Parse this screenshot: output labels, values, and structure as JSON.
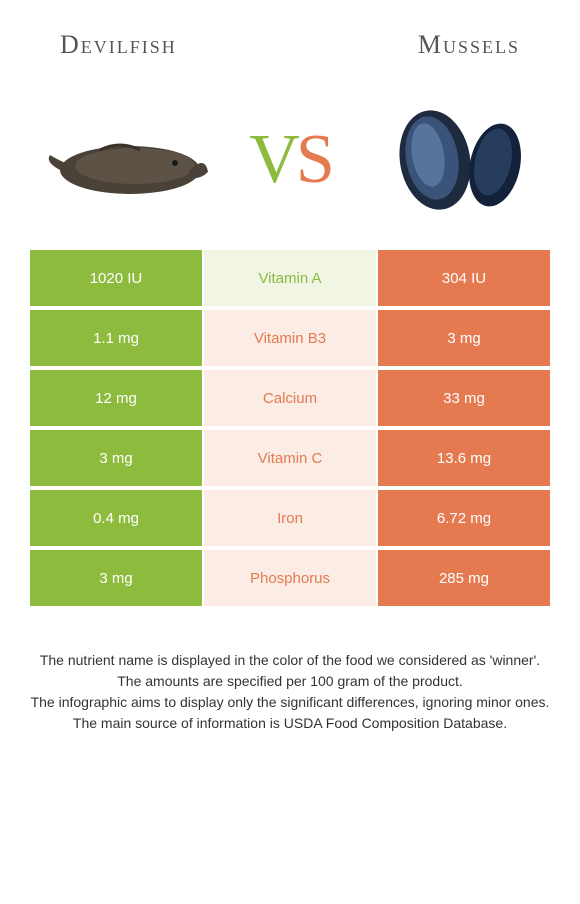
{
  "colors": {
    "green_dark": "#8cbb3e",
    "green_light": "#f0f5e4",
    "orange_dark": "#e57a51",
    "orange_light": "#fbece6",
    "text_dark": "#333333",
    "text_white": "#ffffff"
  },
  "header": {
    "left": "Devilfish",
    "right": "Mussels"
  },
  "vs": {
    "v": "V",
    "s": "S"
  },
  "rows": [
    {
      "left": {
        "value": "1020 IU",
        "bg": "#8cbb3e",
        "fg": "#ffffff"
      },
      "mid": {
        "value": "Vitamin A",
        "bg": "#f0f5e4",
        "fg": "#8cbb3e"
      },
      "right": {
        "value": "304 IU",
        "bg": "#e57a51",
        "fg": "#ffffff"
      }
    },
    {
      "left": {
        "value": "1.1 mg",
        "bg": "#8cbb3e",
        "fg": "#ffffff"
      },
      "mid": {
        "value": "Vitamin B3",
        "bg": "#fbece6",
        "fg": "#e57a51"
      },
      "right": {
        "value": "3 mg",
        "bg": "#e57a51",
        "fg": "#ffffff"
      }
    },
    {
      "left": {
        "value": "12 mg",
        "bg": "#8cbb3e",
        "fg": "#ffffff"
      },
      "mid": {
        "value": "Calcium",
        "bg": "#fbece6",
        "fg": "#e57a51"
      },
      "right": {
        "value": "33 mg",
        "bg": "#e57a51",
        "fg": "#ffffff"
      }
    },
    {
      "left": {
        "value": "3 mg",
        "bg": "#8cbb3e",
        "fg": "#ffffff"
      },
      "mid": {
        "value": "Vitamin C",
        "bg": "#fbece6",
        "fg": "#e57a51"
      },
      "right": {
        "value": "13.6 mg",
        "bg": "#e57a51",
        "fg": "#ffffff"
      }
    },
    {
      "left": {
        "value": "0.4 mg",
        "bg": "#8cbb3e",
        "fg": "#ffffff"
      },
      "mid": {
        "value": "Iron",
        "bg": "#fbece6",
        "fg": "#e57a51"
      },
      "right": {
        "value": "6.72 mg",
        "bg": "#e57a51",
        "fg": "#ffffff"
      }
    },
    {
      "left": {
        "value": "3 mg",
        "bg": "#8cbb3e",
        "fg": "#ffffff"
      },
      "mid": {
        "value": "Phosphorus",
        "bg": "#fbece6",
        "fg": "#e57a51"
      },
      "right": {
        "value": "285 mg",
        "bg": "#e57a51",
        "fg": "#ffffff"
      }
    }
  ],
  "footer": [
    "The nutrient name is displayed in the color of the food we considered as 'winner'.",
    "The amounts are specified per 100 gram of the product.",
    "The infographic aims to display only the significant differences, ignoring minor ones.",
    "The main source of information is USDA Food Composition Database."
  ]
}
